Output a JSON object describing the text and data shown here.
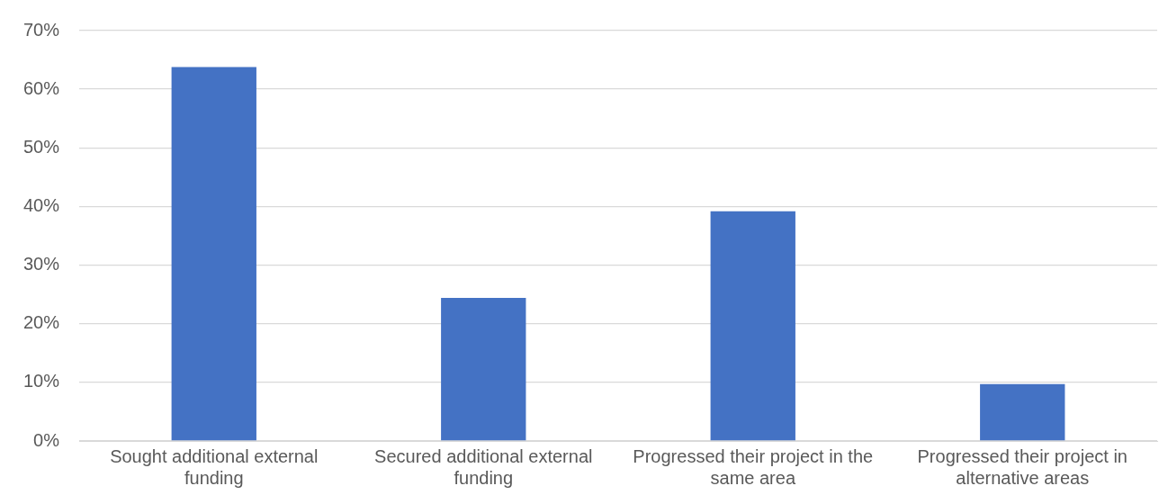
{
  "chart_data": {
    "type": "bar",
    "categories": [
      "Sought additional external funding",
      "Secured additional external funding",
      "Progressed their project in the same area",
      "Progressed their project in alternative areas"
    ],
    "values": [
      63.8,
      24.4,
      39.2,
      9.7
    ],
    "color": "#4472c4",
    "ylim": [
      0,
      70
    ],
    "yticks": [
      {
        "value": 0,
        "label": "0%"
      },
      {
        "value": 10,
        "label": "10%"
      },
      {
        "value": 20,
        "label": "20%"
      },
      {
        "value": 30,
        "label": "30%"
      },
      {
        "value": 40,
        "label": "40%"
      },
      {
        "value": 50,
        "label": "50%"
      },
      {
        "value": 60,
        "label": "60%"
      },
      {
        "value": 70,
        "label": "70%"
      }
    ],
    "grid": "y"
  }
}
